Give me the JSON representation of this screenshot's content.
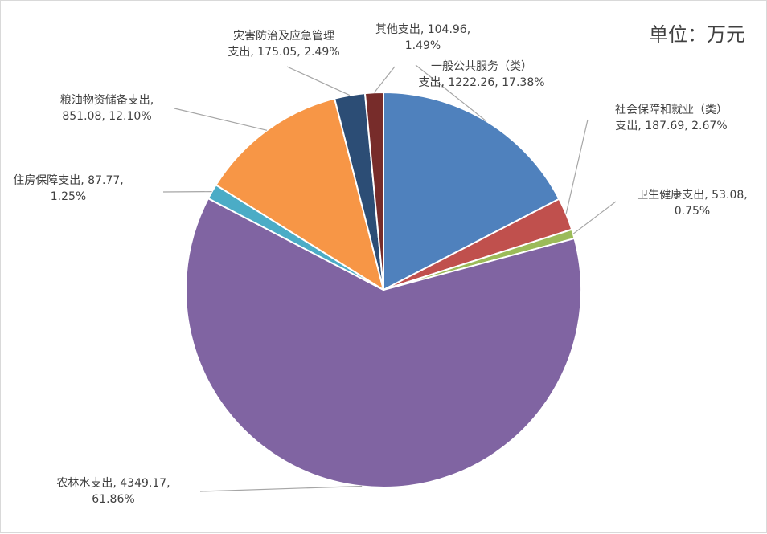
{
  "chart_data": {
    "type": "pie",
    "unit_label": "单位：万元",
    "slices": [
      {
        "name": "一般公共服务（类）支出",
        "value": 1222.26,
        "percent": "17.38%",
        "color": "#4F81BD",
        "label_lines": [
          "一般公共服务（类）",
          "支出, 1222.26, 17.38%"
        ]
      },
      {
        "name": "社会保障和就业（类）支出",
        "value": 187.69,
        "percent": "2.67%",
        "color": "#C0504D",
        "label_lines": [
          "社会保障和就业（类）",
          "支出, 187.69, 2.67%"
        ]
      },
      {
        "name": "卫生健康支出",
        "value": 53.08,
        "percent": "0.75%",
        "color": "#9BBB59",
        "label_lines": [
          "卫生健康支出, 53.08,",
          "0.75%"
        ]
      },
      {
        "name": "农林水支出",
        "value": 4349.17,
        "percent": "61.86%",
        "color": "#8064A2",
        "label_lines": [
          "农林水支出, 4349.17,",
          "61.86%"
        ]
      },
      {
        "name": "住房保障支出",
        "value": 87.77,
        "percent": "1.25%",
        "color": "#4BACC6",
        "label_lines": [
          "住房保障支出, 87.77,",
          "1.25%"
        ]
      },
      {
        "name": "粮油物资储备支出",
        "value": 851.08,
        "percent": "12.10%",
        "color": "#F79646",
        "label_lines": [
          "粮油物资储备支出,",
          "851.08, 12.10%"
        ]
      },
      {
        "name": "灾害防治及应急管理支出",
        "value": 175.05,
        "percent": "2.49%",
        "color": "#2C4D75",
        "label_lines": [
          "灾害防治及应急管理",
          "支出, 175.05, 2.49%"
        ]
      },
      {
        "name": "其他支出",
        "value": 104.96,
        "percent": "1.49%",
        "color": "#772C2A",
        "label_lines": [
          "其他支出, 104.96,",
          "1.49%"
        ]
      }
    ]
  }
}
